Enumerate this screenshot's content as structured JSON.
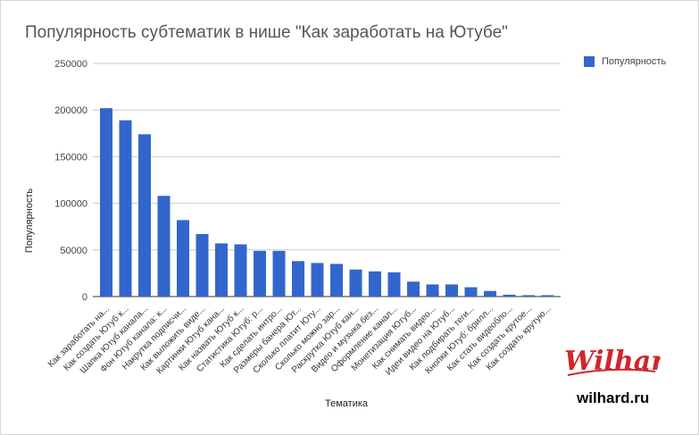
{
  "chart_data": {
    "type": "bar",
    "title": "Популярность субтематик в нише \"Как заработать на Ютубе\"",
    "xlabel": "Тематика",
    "ylabel": "Популярность",
    "ylim": [
      0,
      250000
    ],
    "yticks": [
      0,
      50000,
      100000,
      150000,
      200000,
      250000
    ],
    "grid": true,
    "legend_position": "top-right",
    "bar_color": "#3366cc",
    "categories": [
      "Как заработать на...",
      "Как создать Ютуб к...",
      "Шапка Ютуб канала...",
      "Фон Ютуб канала: к...",
      "Накрутка подписчи...",
      "Как выложить виде...",
      "Картинки Ютуб кана...",
      "Как назвать Ютуб к...",
      "Статистика Ютуб: р...",
      "Как сделать интро...",
      "Размеры банера Ют...",
      "Сколько платит Юту...",
      "Сколько можно зар...",
      "Раскрутка Ютуб кан...",
      "Видео и музыка без...",
      "Оформление канал...",
      "Монетизация Ютуб...",
      "Как снимать видео...",
      "Идеи видео на Ютуб...",
      "Как подбирать теги...",
      "Кнопки Ютуб: брилл...",
      "Как стать видеобло...",
      "Как создать крутое...",
      "Как создать крутую..."
    ],
    "series": [
      {
        "name": "Популярность",
        "values": [
          202000,
          189000,
          174000,
          108000,
          82000,
          67000,
          57000,
          56000,
          49000,
          49000,
          38000,
          36000,
          35000,
          29000,
          27000,
          26000,
          16000,
          13000,
          13000,
          10000,
          6000,
          2000,
          1500,
          1500
        ]
      }
    ]
  },
  "watermark": {
    "logo_text": "Wilhard",
    "site": "wilhard.ru"
  }
}
